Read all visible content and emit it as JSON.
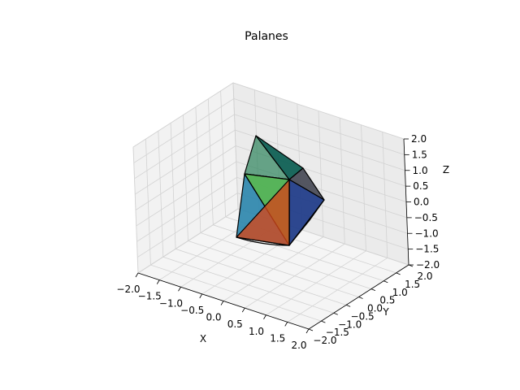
{
  "chart_data": {
    "type": "3d-polyhedron",
    "title": "Palanes",
    "xlabel": "X",
    "ylabel": "Y",
    "zlabel": "Z",
    "xlim": [
      -2.0,
      2.0
    ],
    "ylim": [
      -2.0,
      2.0
    ],
    "zlim": [
      -2.0,
      2.0
    ],
    "x_ticks": [
      "−2.0",
      "−1.5",
      "−1.0",
      "−0.5",
      "0.0",
      "0.5",
      "1.0",
      "1.5",
      "2.0"
    ],
    "y_ticks": [
      "−2.0",
      "−1.5",
      "−1.0",
      "−0.5",
      "0.0",
      "0.5",
      "1.0",
      "1.5",
      "2.0"
    ],
    "z_ticks": [
      "−2.0",
      "−1.5",
      "−1.0",
      "−0.5",
      "0.0",
      "0.5",
      "1.0",
      "1.5",
      "2.0"
    ],
    "grid": true,
    "faces": [
      {
        "color": "#2e8b57",
        "opacity": 0.55
      },
      {
        "color": "#0b5e52",
        "opacity": 0.9
      },
      {
        "color": "#4a4a57",
        "opacity": 0.9
      },
      {
        "color": "#1f3a8a",
        "opacity": 0.9
      },
      {
        "color": "#00c9a7",
        "opacity": 0.9
      },
      {
        "color": "#2a86b0",
        "opacity": 0.85
      },
      {
        "color": "#6fae3f",
        "opacity": 0.75
      },
      {
        "color": "#d2471a",
        "opacity": 0.8
      },
      {
        "color": "#1c6f8a",
        "opacity": 0.85
      }
    ]
  }
}
